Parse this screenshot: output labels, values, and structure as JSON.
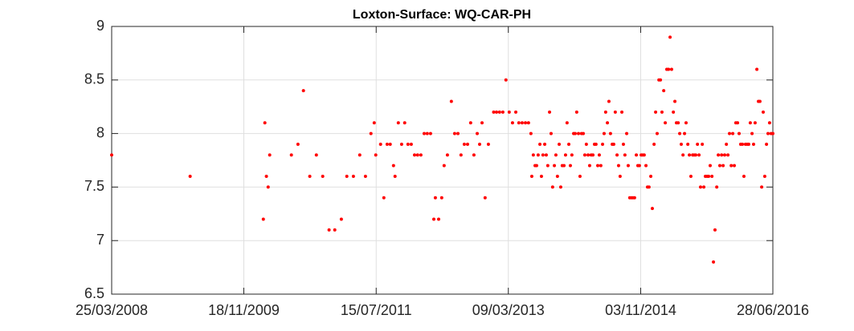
{
  "chart_data": {
    "type": "scatter",
    "title": "Loxton-Surface: WQ-CAR-PH",
    "color": "#ff0000",
    "grid": true,
    "xlim": [
      "2008-03-25",
      "2016-06-28"
    ],
    "xticks": [
      {
        "value": "2008-03-25",
        "label": "25/03/2008"
      },
      {
        "value": "2009-11-18",
        "label": "18/11/2009"
      },
      {
        "value": "2011-07-15",
        "label": "15/07/2011"
      },
      {
        "value": "2013-03-09",
        "label": "09/03/2013"
      },
      {
        "value": "2014-11-03",
        "label": "03/11/2014"
      },
      {
        "value": "2016-06-28",
        "label": "28/06/2016"
      }
    ],
    "ylim": [
      6.5,
      9
    ],
    "yticks": [
      6.5,
      7,
      7.5,
      8,
      8.5,
      9
    ],
    "x": [
      "2008-03-25",
      "2009-03-18",
      "2010-02-15",
      "2010-02-22",
      "2010-03-01",
      "2010-03-09",
      "2010-03-16",
      "2010-06-23",
      "2010-07-23",
      "2010-08-17",
      "2010-09-15",
      "2010-10-15",
      "2010-11-13",
      "2010-12-12",
      "2011-01-07",
      "2011-02-06",
      "2011-03-03",
      "2011-04-02",
      "2011-05-01",
      "2011-05-27",
      "2011-06-21",
      "2011-07-06",
      "2011-07-13",
      "2011-08-04",
      "2011-08-19",
      "2011-09-03",
      "2011-09-17",
      "2011-10-02",
      "2011-10-09",
      "2011-10-24",
      "2011-11-08",
      "2011-11-22",
      "2011-12-07",
      "2011-12-22",
      "2012-01-06",
      "2012-01-20",
      "2012-02-04",
      "2012-02-19",
      "2012-03-04",
      "2012-03-19",
      "2012-04-03",
      "2012-04-10",
      "2012-04-25",
      "2012-05-09",
      "2012-05-20",
      "2012-06-04",
      "2012-06-22",
      "2012-07-07",
      "2012-07-22",
      "2012-08-05",
      "2012-08-20",
      "2012-09-04",
      "2012-09-18",
      "2012-10-03",
      "2012-10-18",
      "2012-10-29",
      "2012-11-09",
      "2012-11-23",
      "2012-12-08",
      "2013-01-01",
      "2013-01-14",
      "2013-01-28",
      "2013-02-12",
      "2013-02-26",
      "2013-03-13",
      "2013-03-28",
      "2013-04-12",
      "2013-04-26",
      "2013-05-11",
      "2013-05-26",
      "2013-06-09",
      "2013-06-20",
      "2013-06-24",
      "2013-07-01",
      "2013-07-09",
      "2013-07-16",
      "2013-07-23",
      "2013-07-31",
      "2013-08-07",
      "2013-08-14",
      "2013-08-22",
      "2013-08-29",
      "2013-09-05",
      "2013-09-13",
      "2013-09-20",
      "2013-09-27",
      "2013-10-05",
      "2013-10-12",
      "2013-10-19",
      "2013-10-27",
      "2013-11-03",
      "2013-11-10",
      "2013-11-18",
      "2013-11-25",
      "2013-12-02",
      "2013-12-10",
      "2013-12-17",
      "2013-12-24",
      "2014-01-01",
      "2014-01-08",
      "2014-01-15",
      "2014-01-23",
      "2014-01-30",
      "2014-02-06",
      "2014-02-14",
      "2014-02-21",
      "2014-02-28",
      "2014-03-08",
      "2014-03-15",
      "2014-03-22",
      "2014-03-30",
      "2014-04-06",
      "2014-04-13",
      "2014-04-21",
      "2014-04-28",
      "2014-05-05",
      "2014-05-13",
      "2014-05-20",
      "2014-05-27",
      "2014-06-04",
      "2014-06-11",
      "2014-06-18",
      "2014-06-26",
      "2014-07-03",
      "2014-07-10",
      "2014-07-18",
      "2014-07-25",
      "2014-08-01",
      "2014-08-09",
      "2014-08-16",
      "2014-08-23",
      "2014-08-31",
      "2014-09-07",
      "2014-09-14",
      "2014-09-22",
      "2014-09-29",
      "2014-10-06",
      "2014-10-14",
      "2014-10-21",
      "2014-10-28",
      "2014-11-05",
      "2014-11-12",
      "2014-11-19",
      "2014-11-27",
      "2014-12-04",
      "2014-12-11",
      "2014-12-19",
      "2014-12-26",
      "2015-01-03",
      "2015-01-10",
      "2015-01-17",
      "2015-01-25",
      "2015-02-01",
      "2015-02-08",
      "2015-02-16",
      "2015-02-23",
      "2015-03-02",
      "2015-03-10",
      "2015-03-17",
      "2015-03-24",
      "2015-04-01",
      "2015-04-08",
      "2015-04-15",
      "2015-04-23",
      "2015-04-30",
      "2015-05-07",
      "2015-05-15",
      "2015-05-22",
      "2015-05-29",
      "2015-06-06",
      "2015-06-13",
      "2015-06-20",
      "2015-06-28",
      "2015-07-05",
      "2015-07-12",
      "2015-07-20",
      "2015-07-27",
      "2015-08-03",
      "2015-08-11",
      "2015-08-18",
      "2015-08-25",
      "2015-09-02",
      "2015-09-09",
      "2015-09-16",
      "2015-09-24",
      "2015-10-01",
      "2015-10-08",
      "2015-10-16",
      "2015-10-23",
      "2015-10-30",
      "2015-11-07",
      "2015-11-14",
      "2015-11-21",
      "2015-11-29",
      "2015-12-06",
      "2015-12-13",
      "2015-12-21",
      "2015-12-28",
      "2016-01-04",
      "2016-01-11",
      "2016-01-19",
      "2016-01-26",
      "2016-02-02",
      "2016-02-10",
      "2016-02-17",
      "2016-02-24",
      "2016-03-03",
      "2016-03-10",
      "2016-03-17",
      "2016-03-25",
      "2016-04-01",
      "2016-04-08",
      "2016-04-16",
      "2016-04-23",
      "2016-04-30",
      "2016-05-08",
      "2016-05-15",
      "2016-05-22",
      "2016-05-30",
      "2016-06-06",
      "2016-06-13",
      "2016-06-20",
      "2016-06-28"
    ],
    "values": [
      7.8,
      7.6,
      7.2,
      8.1,
      7.6,
      7.5,
      7.8,
      7.8,
      7.9,
      8.4,
      7.6,
      7.8,
      7.6,
      7.1,
      7.1,
      7.2,
      7.6,
      7.6,
      7.8,
      7.6,
      8.0,
      8.1,
      7.8,
      7.9,
      7.4,
      7.9,
      7.9,
      7.7,
      7.6,
      8.1,
      7.9,
      8.1,
      7.9,
      7.9,
      7.8,
      7.8,
      7.8,
      8.0,
      8.0,
      8.0,
      7.2,
      7.4,
      7.2,
      7.4,
      7.7,
      7.8,
      8.3,
      8.0,
      8.0,
      7.8,
      7.9,
      7.9,
      8.1,
      7.8,
      8.0,
      7.9,
      8.1,
      7.4,
      7.9,
      8.2,
      8.2,
      8.2,
      8.2,
      8.5,
      8.2,
      8.1,
      8.2,
      8.1,
      8.1,
      8.1,
      8.1,
      8.0,
      7.6,
      7.8,
      7.7,
      7.7,
      7.8,
      7.9,
      7.6,
      7.8,
      7.9,
      7.8,
      7.7,
      8.2,
      8.0,
      7.5,
      7.7,
      7.8,
      7.6,
      7.9,
      7.5,
      7.7,
      7.7,
      7.8,
      8.1,
      7.9,
      7.7,
      7.8,
      8.0,
      8.0,
      8.2,
      8.0,
      7.6,
      8.0,
      8.0,
      7.8,
      7.9,
      7.8,
      7.7,
      7.8,
      7.8,
      7.9,
      7.9,
      7.7,
      7.8,
      7.7,
      7.9,
      8.0,
      8.2,
      8.1,
      8.3,
      8.0,
      7.9,
      7.9,
      8.2,
      7.8,
      7.7,
      7.6,
      8.2,
      7.9,
      7.8,
      8.0,
      7.7,
      7.4,
      7.4,
      7.4,
      7.4,
      7.8,
      7.7,
      7.7,
      7.8,
      7.8,
      7.8,
      7.7,
      7.5,
      7.5,
      7.6,
      7.3,
      7.9,
      8.2,
      8.0,
      8.5,
      8.5,
      8.2,
      8.4,
      8.1,
      8.6,
      8.6,
      8.9,
      8.6,
      8.2,
      8.3,
      8.1,
      8.1,
      8.0,
      7.9,
      7.8,
      8.0,
      8.1,
      7.9,
      7.8,
      7.6,
      7.8,
      7.8,
      7.8,
      7.9,
      7.8,
      7.5,
      7.9,
      7.5,
      7.6,
      7.6,
      7.6,
      7.7,
      7.6,
      6.8,
      7.1,
      7.5,
      7.8,
      7.7,
      7.8,
      7.7,
      7.8,
      7.9,
      7.8,
      8.0,
      7.7,
      8.0,
      7.7,
      8.1,
      8.1,
      8.0,
      7.9,
      7.9,
      7.6,
      7.9,
      7.9,
      7.9,
      8.1,
      8.0,
      7.9,
      8.1,
      8.6,
      8.3,
      8.3,
      7.5,
      8.2,
      7.6,
      7.9,
      8.0,
      8.1,
      8.0,
      8.0
    ]
  }
}
